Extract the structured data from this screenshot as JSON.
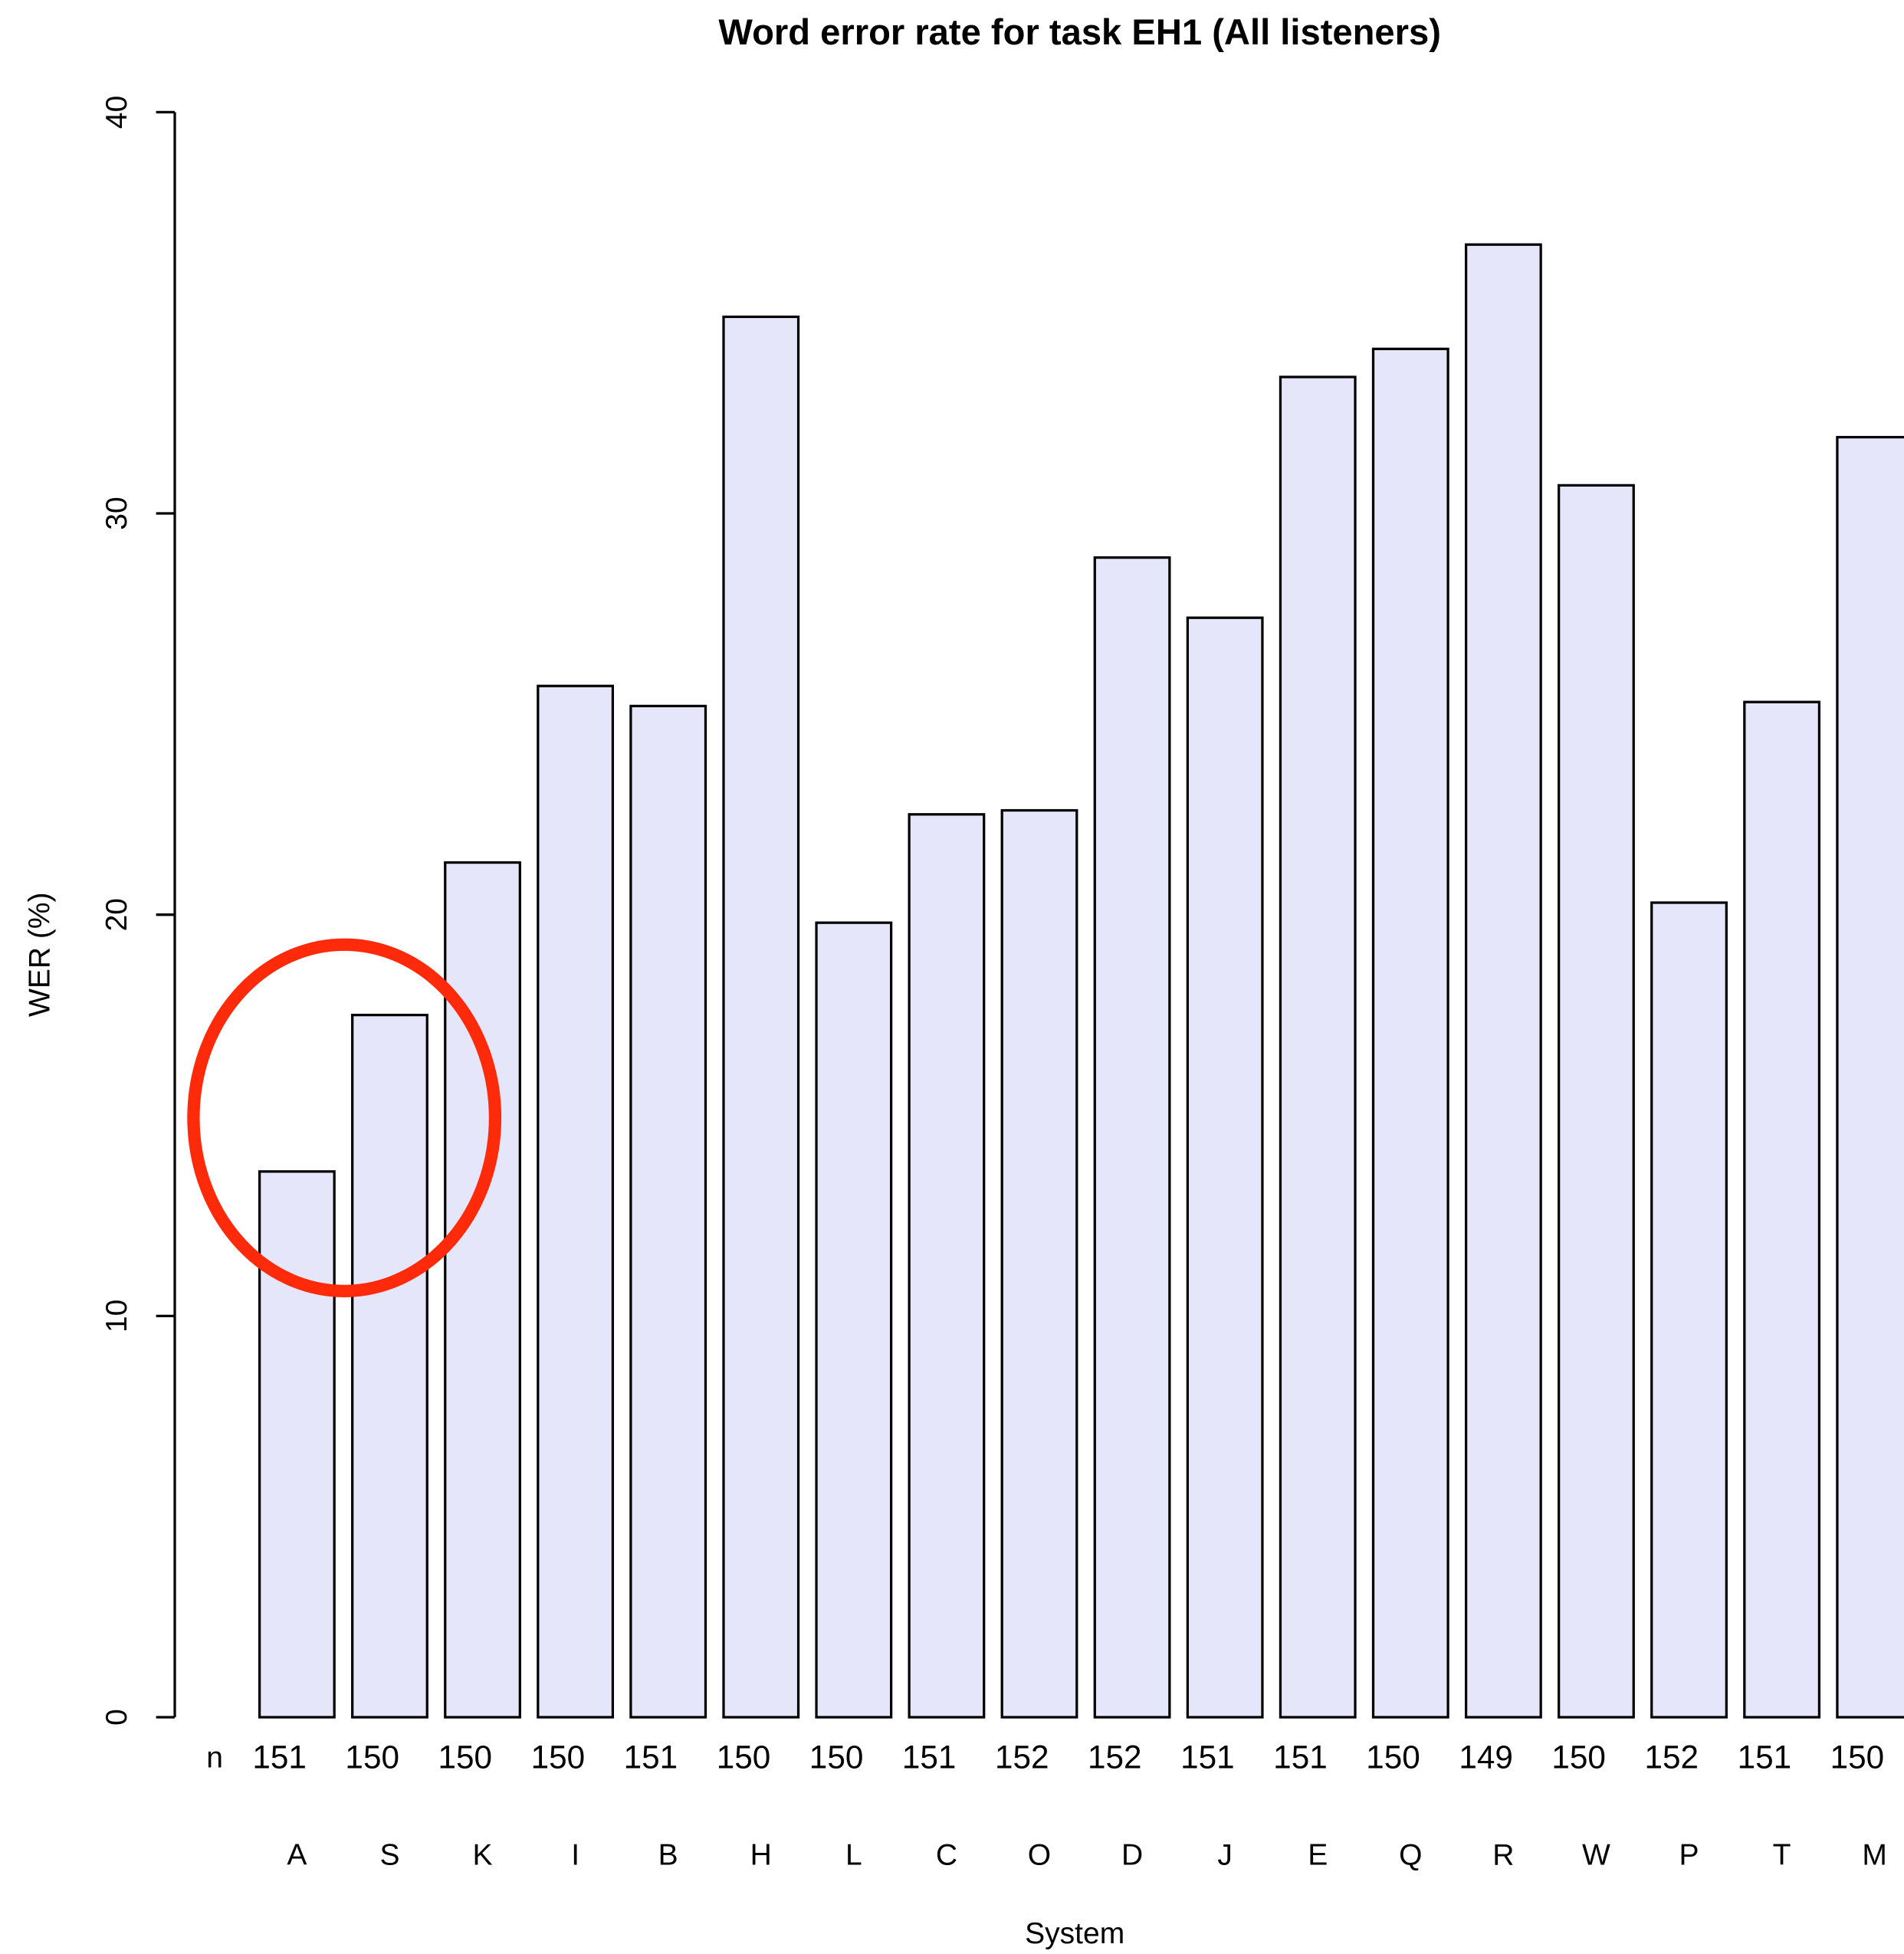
{
  "chart_data": {
    "type": "bar",
    "title": "Word error rate for task EH1 (All listeners)",
    "y_label": "WER (%)",
    "x_label": "System",
    "n_label": "n",
    "categories": [
      "A",
      "S",
      "K",
      "I",
      "B",
      "H",
      "L",
      "C",
      "O",
      "D",
      "J",
      "E",
      "Q",
      "R",
      "W",
      "P",
      "T",
      "M"
    ],
    "values": [
      13.6,
      17.5,
      21.3,
      25.7,
      25.2,
      34.9,
      19.8,
      22.5,
      22.6,
      28.9,
      27.4,
      33.4,
      34.1,
      36.7,
      30.7,
      20.3,
      25.3,
      31.9
    ],
    "n": [
      151,
      150,
      150,
      150,
      151,
      150,
      150,
      151,
      152,
      152,
      151,
      151,
      150,
      149,
      150,
      152,
      151,
      150
    ],
    "color": "#e6e6fa",
    "ylim": [
      0,
      40
    ],
    "yticks": [
      0,
      10,
      20,
      30,
      40
    ]
  }
}
